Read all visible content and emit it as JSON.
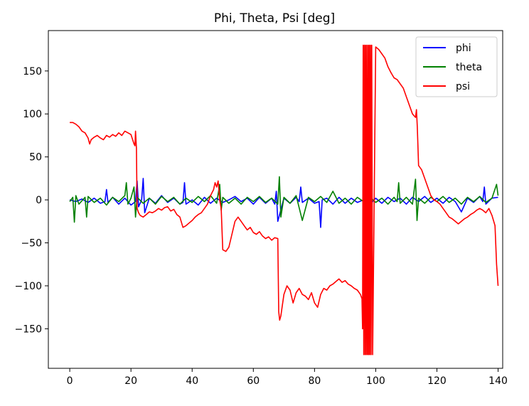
{
  "chart_data": {
    "type": "line",
    "title": "Phi, Theta, Psi [deg]",
    "xlabel": "",
    "ylabel": "",
    "xlim": [
      -7,
      141.5
    ],
    "ylim": [
      -196,
      197
    ],
    "xticks": [
      0,
      20,
      40,
      60,
      80,
      100,
      120,
      140
    ],
    "yticks": [
      -150,
      -100,
      -50,
      0,
      50,
      100,
      150
    ],
    "xtick_labels": [
      "0",
      "20",
      "40",
      "60",
      "80",
      "100",
      "120",
      "140"
    ],
    "ytick_labels": [
      "−150",
      "−100",
      "−50",
      "0",
      "50",
      "100",
      "150"
    ],
    "grid": false,
    "legend": {
      "position": "top-right",
      "entries": [
        "phi",
        "theta",
        "psi"
      ]
    },
    "series": [
      {
        "name": "phi",
        "color": "#0000ff",
        "x": [
          0,
          2,
          4,
          6,
          8,
          10,
          11.5,
          12,
          12.5,
          14,
          16,
          18,
          20,
          21.5,
          22,
          22.5,
          23.5,
          24,
          24.5,
          26,
          28,
          30,
          32,
          34,
          36,
          37,
          37.5,
          38,
          40,
          42,
          44,
          46,
          48,
          50,
          52,
          54,
          56,
          58,
          60,
          62,
          64,
          66,
          67,
          67.5,
          68,
          70,
          72,
          74,
          75,
          75.5,
          76,
          78,
          80,
          81.5,
          82,
          82.5,
          84,
          86,
          88,
          90,
          92,
          94,
          96,
          98,
          100,
          102,
          104,
          106,
          108,
          110,
          112,
          114,
          116,
          118,
          120,
          122,
          124,
          126,
          128,
          130,
          132,
          134,
          135,
          135.5,
          136,
          138,
          140
        ],
        "y": [
          0,
          -2,
          1,
          -3,
          2,
          -4,
          -2,
          12,
          -3,
          3,
          -5,
          2,
          -6,
          -2,
          22,
          -8,
          0,
          25,
          -15,
          2,
          -4,
          5,
          -3,
          2,
          -5,
          -3,
          20,
          -5,
          0,
          -6,
          3,
          -4,
          2,
          -3,
          0,
          4,
          -2,
          2,
          -5,
          3,
          -4,
          2,
          -5,
          10,
          -25,
          2,
          -4,
          3,
          -2,
          15,
          -3,
          2,
          -4,
          -2,
          -32,
          0,
          2,
          -5,
          3,
          -4,
          2,
          -3,
          0,
          -6,
          2,
          -4,
          3,
          -2,
          2,
          -5,
          3,
          -2,
          4,
          -3,
          2,
          -4,
          3,
          -2,
          -14,
          2,
          -3,
          4,
          -2,
          15,
          -5,
          2,
          3
        ]
      },
      {
        "name": "theta",
        "color": "#008000",
        "x": [
          0,
          1,
          1.5,
          2,
          3,
          5,
          5.5,
          6,
          8,
          10,
          12,
          14,
          16,
          18,
          18.5,
          19,
          20,
          21,
          21.5,
          22,
          24,
          26,
          28,
          30,
          32,
          34,
          36,
          38,
          40,
          42,
          44,
          46,
          48,
          49,
          49.5,
          50,
          52,
          54,
          56,
          58,
          60,
          62,
          64,
          66,
          68,
          68.5,
          69,
          70,
          72,
          74,
          76,
          78,
          80,
          82,
          84,
          86,
          88,
          90,
          92,
          94,
          96,
          98,
          100,
          102,
          104,
          106,
          107,
          107.5,
          108,
          110,
          112,
          113,
          113.5,
          114,
          116,
          118,
          120,
          122,
          124,
          126,
          128,
          130,
          132,
          134,
          136,
          138,
          139.5,
          140
        ],
        "y": [
          -2,
          3,
          -26,
          5,
          -5,
          3,
          -20,
          4,
          -3,
          2,
          -6,
          3,
          -2,
          5,
          20,
          -5,
          2,
          15,
          -20,
          3,
          -4,
          2,
          -5,
          4,
          -2,
          3,
          -5,
          2,
          -3,
          4,
          -2,
          5,
          -4,
          18,
          -12,
          3,
          -4,
          2,
          -5,
          3,
          -2,
          4,
          -3,
          2,
          -5,
          27,
          -20,
          3,
          -4,
          5,
          -24,
          3,
          -2,
          4,
          -3,
          10,
          -4,
          2,
          -5,
          3,
          -2,
          4,
          -3,
          2,
          -5,
          3,
          -2,
          20,
          -4,
          3,
          -5,
          24,
          -24,
          2,
          -4,
          3,
          -2,
          4,
          -3,
          2,
          -5,
          3,
          -2,
          4,
          -3,
          2,
          18,
          5
        ]
      },
      {
        "name": "psi",
        "color": "#ff0000",
        "x": [
          0,
          1,
          2,
          3,
          4,
          5,
          6,
          6.5,
          7,
          8,
          9,
          10,
          11,
          12,
          13,
          14,
          15,
          16,
          17,
          18,
          19,
          20,
          21,
          21.3,
          21.5,
          21.8,
          22,
          22.5,
          23,
          24,
          25,
          26,
          27,
          28,
          29,
          30,
          31,
          32,
          33,
          34,
          35,
          36,
          37,
          38,
          39,
          40,
          41,
          42,
          43,
          44,
          45,
          46,
          47,
          47.5,
          48,
          48.5,
          49,
          49.5,
          50,
          51,
          52,
          53,
          54,
          55,
          56,
          57,
          58,
          59,
          60,
          61,
          62,
          63,
          64,
          65,
          66,
          67,
          68,
          68.3,
          68.6,
          69,
          70,
          71,
          72,
          73,
          74,
          75,
          76,
          77,
          78,
          79,
          80,
          81,
          82,
          83,
          84,
          85,
          86,
          87,
          88,
          89,
          90,
          91,
          92,
          93,
          94,
          95,
          95.5,
          95.7,
          95.9,
          96.1,
          96.3,
          96.5,
          96.7,
          96.9,
          97.1,
          97.3,
          97.5,
          97.7,
          97.9,
          98.1,
          98.3,
          98.5,
          98.7,
          99,
          100,
          101,
          102,
          103,
          104,
          105,
          106,
          107,
          108,
          109,
          110,
          111,
          112,
          113,
          113.3,
          113.6,
          114,
          115,
          116,
          117,
          118,
          119,
          120,
          121,
          122,
          123,
          124,
          125,
          126,
          127,
          128,
          129,
          130,
          131,
          132,
          133,
          134,
          135,
          136,
          137,
          138,
          139,
          139.5,
          140
        ],
        "y": [
          90,
          90,
          88,
          85,
          80,
          78,
          72,
          65,
          70,
          73,
          75,
          72,
          70,
          75,
          73,
          76,
          74,
          78,
          75,
          80,
          78,
          76,
          65,
          63,
          80,
          60,
          -10,
          -15,
          -18,
          -20,
          -17,
          -14,
          -15,
          -13,
          -10,
          -12,
          -9,
          -8,
          -13,
          -11,
          -17,
          -20,
          -32,
          -30,
          -27,
          -24,
          -20,
          -17,
          -15,
          -10,
          -5,
          5,
          12,
          20,
          15,
          22,
          0,
          -10,
          -58,
          -60,
          -55,
          -40,
          -25,
          -20,
          -25,
          -30,
          -35,
          -32,
          -38,
          -40,
          -37,
          -42,
          -45,
          -43,
          -47,
          -44,
          -45,
          -130,
          -140,
          -135,
          -110,
          -100,
          -105,
          -120,
          -108,
          -103,
          -110,
          -112,
          -116,
          -108,
          -120,
          -125,
          -110,
          -103,
          -105,
          -100,
          -98,
          -95,
          -92,
          -96,
          -94,
          -98,
          -100,
          -103,
          -105,
          -110,
          -115,
          -150,
          180,
          -180,
          180,
          -180,
          180,
          -180,
          180,
          -180,
          180,
          -180,
          180,
          -180,
          180,
          -180,
          180,
          -180,
          178,
          175,
          170,
          165,
          155,
          148,
          142,
          140,
          135,
          130,
          120,
          110,
          100,
          96,
          105,
          85,
          40,
          35,
          25,
          15,
          5,
          0,
          -2,
          -5,
          -10,
          -15,
          -20,
          -22,
          -25,
          -28,
          -25,
          -22,
          -20,
          -17,
          -15,
          -12,
          -10,
          -12,
          -15,
          -10,
          -18,
          -30,
          -75,
          -100
        ]
      }
    ]
  }
}
